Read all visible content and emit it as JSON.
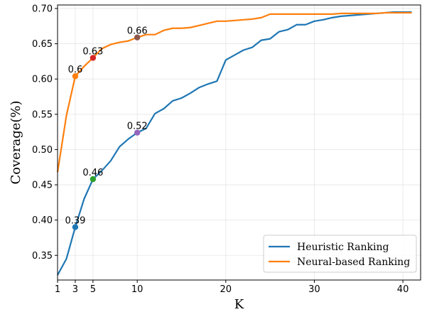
{
  "chart_data": {
    "type": "line",
    "xlabel": "K",
    "ylabel": "Coverage(%)",
    "xlim": [
      1,
      42
    ],
    "ylim": [
      0.315,
      0.705
    ],
    "xticks": [
      1,
      3,
      5,
      10,
      20,
      30,
      40
    ],
    "yticks": [
      0.35,
      0.4,
      0.45,
      0.5,
      0.55,
      0.6,
      0.65,
      0.7
    ],
    "ytick_labels": [
      "0.35",
      "0.40",
      "0.45",
      "0.50",
      "0.55",
      "0.60",
      "0.65",
      "0.70"
    ],
    "grid": true,
    "legend_position": "bottom-right",
    "series": [
      {
        "name": "Heuristic Ranking",
        "color": "#1f77b4",
        "x": [
          1,
          2,
          3,
          4,
          5,
          6,
          7,
          8,
          9,
          10,
          11,
          12,
          13,
          14,
          15,
          16,
          17,
          18,
          19,
          20,
          21,
          22,
          23,
          24,
          25,
          26,
          27,
          28,
          29,
          30,
          31,
          32,
          33,
          34,
          35,
          36,
          37,
          38,
          39,
          40,
          41
        ],
        "y": [
          0.322,
          0.345,
          0.39,
          0.43,
          0.458,
          0.47,
          0.484,
          0.504,
          0.515,
          0.524,
          0.53,
          0.551,
          0.558,
          0.569,
          0.573,
          0.58,
          0.588,
          0.593,
          0.597,
          0.627,
          0.634,
          0.641,
          0.645,
          0.655,
          0.657,
          0.667,
          0.67,
          0.677,
          0.677,
          0.682,
          0.684,
          0.687,
          0.689,
          0.69,
          0.691,
          0.692,
          0.693,
          0.694,
          0.695,
          0.695,
          0.695
        ]
      },
      {
        "name": "Neural-based Ranking",
        "color": "#ff7f0e",
        "x": [
          1,
          2,
          3,
          4,
          5,
          6,
          7,
          8,
          9,
          10,
          11,
          12,
          13,
          14,
          15,
          16,
          17,
          18,
          19,
          20,
          21,
          22,
          23,
          24,
          25,
          26,
          27,
          28,
          29,
          30,
          31,
          32,
          33,
          34,
          35,
          36,
          37,
          38,
          39,
          40,
          41
        ],
        "y": [
          0.468,
          0.548,
          0.604,
          0.618,
          0.63,
          0.643,
          0.649,
          0.652,
          0.654,
          0.659,
          0.663,
          0.663,
          0.669,
          0.672,
          0.672,
          0.673,
          0.676,
          0.679,
          0.682,
          0.682,
          0.683,
          0.684,
          0.685,
          0.687,
          0.692,
          0.692,
          0.692,
          0.692,
          0.692,
          0.692,
          0.692,
          0.692,
          0.693,
          0.693,
          0.693,
          0.693,
          0.693,
          0.694,
          0.694,
          0.694,
          0.694
        ]
      }
    ],
    "highlights": [
      {
        "x": 3,
        "y": 0.39,
        "label": "0.39",
        "color": "#1f77b4"
      },
      {
        "x": 5,
        "y": 0.458,
        "label": "0.46",
        "color": "#2ca02c"
      },
      {
        "x": 10,
        "y": 0.524,
        "label": "0.52",
        "color": "#9467bd"
      },
      {
        "x": 3,
        "y": 0.604,
        "label": "0.6",
        "color": "#ff7f0e"
      },
      {
        "x": 5,
        "y": 0.63,
        "label": "0.63",
        "color": "#d62728"
      },
      {
        "x": 10,
        "y": 0.659,
        "label": "0.66",
        "color": "#8c564b"
      }
    ]
  }
}
